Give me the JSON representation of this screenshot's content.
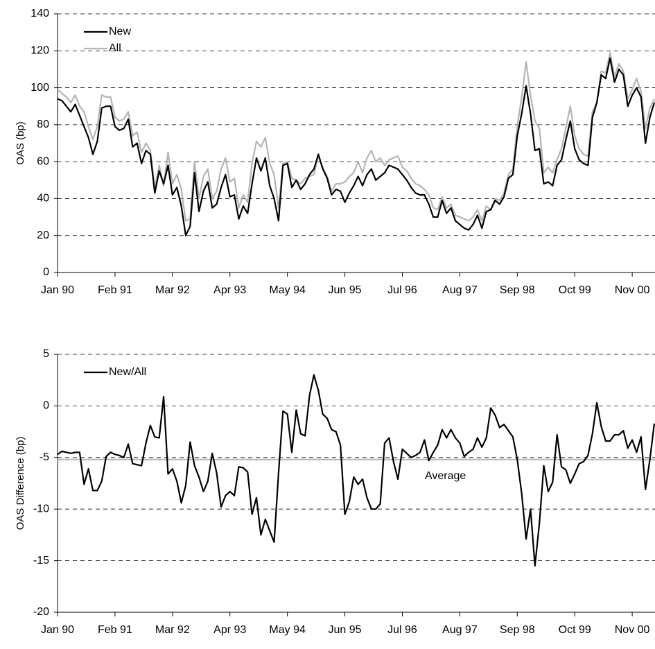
{
  "chart_data": [
    {
      "type": "line",
      "y_label": "OAS (bp)",
      "categories": [
        "Jan 90",
        null,
        null,
        null,
        null,
        null,
        null,
        null,
        null,
        null,
        null,
        null,
        null,
        "Feb 91",
        null,
        null,
        null,
        null,
        null,
        null,
        null,
        null,
        null,
        null,
        null,
        null,
        "Mar 92",
        null,
        null,
        null,
        null,
        null,
        null,
        null,
        null,
        null,
        null,
        null,
        null,
        "Apr 93",
        null,
        null,
        null,
        null,
        null,
        null,
        null,
        null,
        null,
        null,
        null,
        null,
        "May 94",
        null,
        null,
        null,
        null,
        null,
        null,
        null,
        null,
        null,
        null,
        null,
        null,
        "Jun 95",
        null,
        null,
        null,
        null,
        null,
        null,
        null,
        null,
        null,
        null,
        null,
        null,
        "Jul 96",
        null,
        null,
        null,
        null,
        null,
        null,
        null,
        null,
        null,
        null,
        null,
        null,
        "Aug 97",
        null,
        null,
        null,
        null,
        null,
        null,
        null,
        null,
        null,
        null,
        null,
        null,
        "Sep 98",
        null,
        null,
        null,
        null,
        null,
        null,
        null,
        null,
        null,
        null,
        null,
        null,
        "Oct 99",
        null,
        null,
        null,
        null,
        null,
        null,
        null,
        null,
        null,
        null,
        null,
        null,
        "Nov 00",
        null,
        null,
        null,
        null,
        null
      ],
      "series": [
        {
          "name": "New",
          "color": "#000000",
          "values": [
            94,
            93,
            90,
            87,
            91,
            85,
            79,
            73,
            64,
            71,
            89,
            90,
            90,
            79,
            77,
            78,
            83,
            68,
            70,
            59,
            66,
            64,
            43,
            55,
            48,
            58,
            42,
            46,
            36,
            20,
            25,
            54,
            33,
            44,
            49,
            35,
            37,
            46,
            53,
            41,
            42,
            29,
            36,
            32,
            48,
            62,
            55,
            62,
            47,
            40,
            28,
            58,
            59,
            46,
            50,
            45,
            48,
            53,
            56,
            64,
            56,
            51,
            42,
            45,
            44,
            38,
            43,
            47,
            52,
            47,
            53,
            56,
            50,
            52,
            54,
            58,
            57,
            56,
            53,
            50,
            46,
            43,
            42,
            42,
            37,
            30,
            30,
            39,
            32,
            35,
            28,
            26,
            24,
            23,
            26,
            31,
            24,
            33,
            34,
            39,
            37,
            41,
            51,
            53,
            74,
            86,
            101,
            86,
            66,
            67,
            48,
            49,
            47,
            58,
            61,
            72,
            82,
            67,
            61,
            59,
            58,
            84,
            92,
            107,
            105,
            116,
            103,
            110,
            107,
            90,
            96,
            100,
            95,
            70,
            84,
            92
          ]
        },
        {
          "name": "All",
          "color": "#b4b4b4",
          "values": [
            99,
            97,
            95,
            92,
            96,
            90,
            87,
            79,
            72,
            79,
            96,
            95,
            95,
            84,
            82,
            83,
            87,
            74,
            76,
            65,
            70,
            66,
            46,
            58,
            47,
            65,
            48,
            53,
            45,
            28,
            29,
            60,
            40,
            52,
            56,
            40,
            44,
            56,
            62,
            49,
            51,
            35,
            42,
            38,
            59,
            71,
            68,
            73,
            59,
            53,
            35,
            59,
            60,
            51,
            50,
            48,
            51,
            52,
            53,
            63,
            57,
            52,
            44,
            48,
            48,
            49,
            52,
            54,
            60,
            54,
            62,
            66,
            60,
            62,
            58,
            61,
            62,
            63,
            57,
            55,
            51,
            48,
            47,
            45,
            42,
            35,
            34,
            41,
            35,
            37,
            31,
            30,
            29,
            28,
            30,
            34,
            28,
            36,
            34,
            40,
            39,
            43,
            53,
            56,
            79,
            95,
            114,
            96,
            82,
            78,
            54,
            57,
            54,
            61,
            67,
            78,
            90,
            74,
            67,
            64,
            63,
            87,
            92,
            109,
            108,
            119,
            106,
            113,
            109,
            94,
            99,
            105,
            98,
            78,
            89,
            94
          ]
        }
      ],
      "ylim": [
        0,
        140
      ],
      "yticks": [
        0,
        20,
        40,
        60,
        80,
        100,
        120,
        140
      ],
      "grid": true
    },
    {
      "type": "line",
      "y_label": "OAS Difference (bp)",
      "categories": [
        "Jan 90",
        null,
        null,
        null,
        null,
        null,
        null,
        null,
        null,
        null,
        null,
        null,
        null,
        "Feb 91",
        null,
        null,
        null,
        null,
        null,
        null,
        null,
        null,
        null,
        null,
        null,
        null,
        "Mar 92",
        null,
        null,
        null,
        null,
        null,
        null,
        null,
        null,
        null,
        null,
        null,
        null,
        "Apr 93",
        null,
        null,
        null,
        null,
        null,
        null,
        null,
        null,
        null,
        null,
        null,
        null,
        "May 94",
        null,
        null,
        null,
        null,
        null,
        null,
        null,
        null,
        null,
        null,
        null,
        null,
        "Jun 95",
        null,
        null,
        null,
        null,
        null,
        null,
        null,
        null,
        null,
        null,
        null,
        null,
        "Jul 96",
        null,
        null,
        null,
        null,
        null,
        null,
        null,
        null,
        null,
        null,
        null,
        null,
        "Aug 97",
        null,
        null,
        null,
        null,
        null,
        null,
        null,
        null,
        null,
        null,
        null,
        null,
        "Sep 98",
        null,
        null,
        null,
        null,
        null,
        null,
        null,
        null,
        null,
        null,
        null,
        null,
        "Oct 99",
        null,
        null,
        null,
        null,
        null,
        null,
        null,
        null,
        null,
        null,
        null,
        null,
        "Nov 00",
        null,
        null,
        null,
        null,
        null
      ],
      "series": [
        {
          "name": "New/All",
          "color": "#000000",
          "values": [
            -4.7,
            -4.4,
            -4.5,
            -4.6,
            -4.5,
            -4.5,
            -7.6,
            -6.1,
            -8.2,
            -8.2,
            -7.3,
            -4.9,
            -4.5,
            -4.7,
            -4.8,
            -5.0,
            -3.7,
            -5.6,
            -5.7,
            -5.8,
            -3.6,
            -1.9,
            -3.0,
            -3.1,
            0.9,
            -6.6,
            -6.1,
            -7.3,
            -9.4,
            -7.7,
            -3.5,
            -5.8,
            -6.9,
            -8.3,
            -7.3,
            -4.6,
            -6.5,
            -9.8,
            -8.7,
            -8.3,
            -8.7,
            -5.9,
            -6.0,
            -6.4,
            -10.5,
            -8.9,
            -12.5,
            -11.0,
            -12.1,
            -13.2,
            -6.5,
            -0.5,
            -0.8,
            -4.5,
            -0.4,
            -2.7,
            -2.9,
            1.0,
            3.0,
            1.5,
            -0.8,
            -1.2,
            -2.3,
            -2.5,
            -3.8,
            -10.5,
            -9.3,
            -6.9,
            -7.6,
            -7.1,
            -8.9,
            -10.0,
            -10.0,
            -9.5,
            -3.6,
            -3.1,
            -5.4,
            -7.1,
            -4.2,
            -4.6,
            -5.0,
            -4.8,
            -4.5,
            -3.3,
            -5.3,
            -4.5,
            -3.8,
            -2.3,
            -3.1,
            -2.3,
            -3.1,
            -3.6,
            -4.9,
            -4.5,
            -4.2,
            -3.1,
            -4.0,
            -3.1,
            -0.2,
            -0.9,
            -2.1,
            -1.8,
            -2.4,
            -3.0,
            -5.2,
            -8.5,
            -12.9,
            -10.0,
            -15.5,
            -11.4,
            -5.8,
            -8.3,
            -7.4,
            -2.8,
            -5.9,
            -6.2,
            -7.5,
            -6.6,
            -5.6,
            -5.4,
            -4.8,
            -2.7,
            0.3,
            -2.0,
            -3.4,
            -3.4,
            -2.8,
            -2.8,
            -2.4,
            -4.1,
            -3.3,
            -4.5,
            -3.0,
            -8.1,
            -5.2,
            -1.7
          ]
        }
      ],
      "reference_line": {
        "value": -5.2,
        "label": "Average",
        "color": "#b4b4b4"
      },
      "ylim": [
        -20,
        5
      ],
      "yticks": [
        -20,
        -15,
        -10,
        -5,
        0,
        5
      ],
      "grid": true
    }
  ]
}
